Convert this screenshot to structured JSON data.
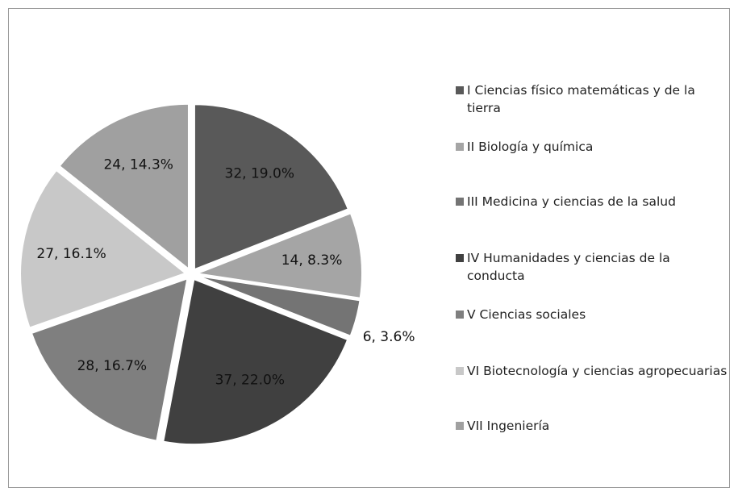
{
  "chart_data": {
    "type": "pie",
    "categories": [
      "I Ciencias físico matemáticas  y de la tierra",
      "II Biología y química",
      "III Medicina y ciencias de la salud",
      "IV Humanidades y ciencias de la conducta",
      "V Ciencias sociales",
      "VI Biotecnología y ciencias agropecuarias",
      "VII Ingeniería"
    ],
    "values": [
      32,
      14,
      6,
      37,
      28,
      27,
      24
    ],
    "value_labels": [
      "32, 19.0%",
      "14, 8.3%",
      "6, 3.6%",
      "37, 22.0%",
      "28, 16.7%",
      "27, 16.1%",
      "24, 14.3%"
    ],
    "colors": [
      "#595959",
      "#a5a5a5",
      "#747474",
      "#404040",
      "#7f7f7f",
      "#c8c8c8",
      "#a0a0a0"
    ],
    "legend": "right"
  }
}
